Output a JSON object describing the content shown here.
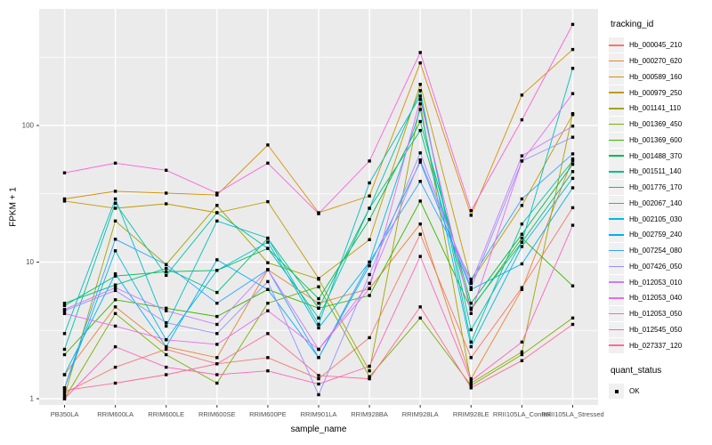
{
  "chart_data": {
    "type": "line",
    "title": "",
    "xlabel": "sample_name",
    "ylabel": "FPKM + 1",
    "y_scale": "log10",
    "y_ticks": [
      1,
      10,
      100
    ],
    "y_minor_ticks": [
      3.162,
      31.623,
      316.228
    ],
    "ylim": [
      0.9,
      715
    ],
    "panel_bg": "#EBEBEB",
    "grid_color": "#FFFFFF",
    "tick_text_color": "#4D4D4D",
    "point_color": "#000000",
    "point_shape": "square",
    "legend_position": "right",
    "categories": [
      "PB350LA",
      "RRIM600LA",
      "RRIM600LE",
      "RRIM600SE",
      "RRIM600PE",
      "RRIM901LA",
      "RRIM928BA",
      "RRIM928LA",
      "RRIM928LE",
      "RRII105LA_Control",
      "RRII105LA_Stressed"
    ],
    "legend": {
      "title": "tracking_id"
    },
    "legend2": {
      "title": "quant_status",
      "items": [
        {
          "label": "OK",
          "symbol": "black-square"
        }
      ]
    },
    "series": [
      {
        "name": "Hb_000045_210",
        "color": "#F8766D",
        "values": [
          1.1,
          1.7,
          2.3,
          1.8,
          2.0,
          1.4,
          2.8,
          16,
          2.0,
          6.5,
          25
        ]
      },
      {
        "name": "Hb_000270_620",
        "color": "#EA8331",
        "values": [
          1.5,
          4.7,
          2.4,
          2.0,
          8.8,
          5.0,
          6.4,
          19,
          1.4,
          6.3,
          57
        ]
      },
      {
        "name": "Hb_000589_160",
        "color": "#D89000",
        "values": [
          29,
          33,
          32,
          31,
          72,
          23,
          30.5,
          287,
          22,
          167,
          360
        ]
      },
      {
        "name": "Hb_000979_250",
        "color": "#C09B00",
        "values": [
          28,
          24.8,
          26.7,
          23,
          27.7,
          7.6,
          14.6,
          200,
          7.2,
          26,
          120
        ]
      },
      {
        "name": "Hb_001141_110",
        "color": "#A3A500",
        "values": [
          1.05,
          20,
          9.6,
          26,
          9.9,
          7.5,
          1.6,
          144,
          1.3,
          2.2,
          122
        ]
      },
      {
        "name": "Hb_001369_450",
        "color": "#7CAE00",
        "values": [
          1.0,
          4.2,
          2.1,
          1.3,
          5.0,
          6.6,
          1.45,
          3.9,
          1.25,
          2.1,
          3.9
        ]
      },
      {
        "name": "Hb_001369_600",
        "color": "#39B600",
        "values": [
          2.1,
          5.3,
          4.6,
          4.0,
          6.3,
          4.6,
          5.7,
          28,
          4.5,
          15,
          6.7
        ]
      },
      {
        "name": "Hb_001488_370",
        "color": "#00BB4E",
        "values": [
          4.8,
          7.9,
          8.5,
          8.7,
          12.6,
          5.4,
          20.5,
          107,
          5.0,
          16,
          52
        ]
      },
      {
        "name": "Hb_001511_140",
        "color": "#00BF7D",
        "values": [
          5.0,
          6.8,
          9.0,
          6.0,
          14.9,
          4.6,
          24.8,
          92,
          4.6,
          14,
          46
        ]
      },
      {
        "name": "Hb_001776_170",
        "color": "#00C1A3",
        "values": [
          2.3,
          27,
          8.0,
          23,
          12.6,
          3.9,
          24.8,
          180,
          2.6,
          19,
          55
        ]
      },
      {
        "name": "Hb_002067_140",
        "color": "#00BFC4",
        "values": [
          3.0,
          29,
          3.4,
          20,
          15,
          3.5,
          38,
          164,
          3.2,
          14,
          262
        ]
      },
      {
        "name": "Hb_002105_030",
        "color": "#00BAE0",
        "values": [
          1.2,
          12.1,
          2.7,
          8.7,
          14,
          3.3,
          10,
          131,
          2.4,
          13,
          41
        ]
      },
      {
        "name": "Hb_002759_240",
        "color": "#00B0F6",
        "values": [
          1.5,
          8.2,
          2.4,
          10.4,
          6.3,
          2.0,
          9.4,
          54,
          6.3,
          9.7,
          35
        ]
      },
      {
        "name": "Hb_007254_080",
        "color": "#35A2FF",
        "values": [
          1.2,
          14.7,
          9.6,
          5.0,
          8.8,
          2.0,
          10,
          39,
          7.5,
          29,
          62
        ]
      },
      {
        "name": "Hb_007426_050",
        "color": "#9590FF",
        "values": [
          4.4,
          6.2,
          3.6,
          3.0,
          7.2,
          1.07,
          8.1,
          63,
          6.5,
          55,
          82
        ]
      },
      {
        "name": "Hb_012053_010",
        "color": "#C77CFF",
        "values": [
          4.5,
          6.5,
          4.4,
          3.5,
          8.8,
          2.3,
          7.0,
          56,
          7.0,
          60,
          99
        ]
      },
      {
        "name": "Hb_012053_040",
        "color": "#E76BF3",
        "values": [
          4.2,
          3.4,
          2.7,
          2.5,
          4.4,
          2.3,
          6.4,
          155,
          4.2,
          55,
          171
        ]
      },
      {
        "name": "Hb_012053_050",
        "color": "#FA62DB",
        "values": [
          45,
          53,
          47,
          32,
          53,
          22.6,
          55,
          342,
          23.8,
          110,
          550
        ]
      },
      {
        "name": "Hb_012545_050",
        "color": "#FF62BC",
        "values": [
          1.0,
          2.4,
          1.7,
          1.5,
          1.6,
          1.28,
          1.73,
          11,
          1.35,
          2.6,
          18.6
        ]
      },
      {
        "name": "Hb_027337_120",
        "color": "#FF6A98",
        "values": [
          1.15,
          1.3,
          1.5,
          1.8,
          3.0,
          1.48,
          1.4,
          4.7,
          1.2,
          1.9,
          3.5
        ]
      }
    ]
  }
}
